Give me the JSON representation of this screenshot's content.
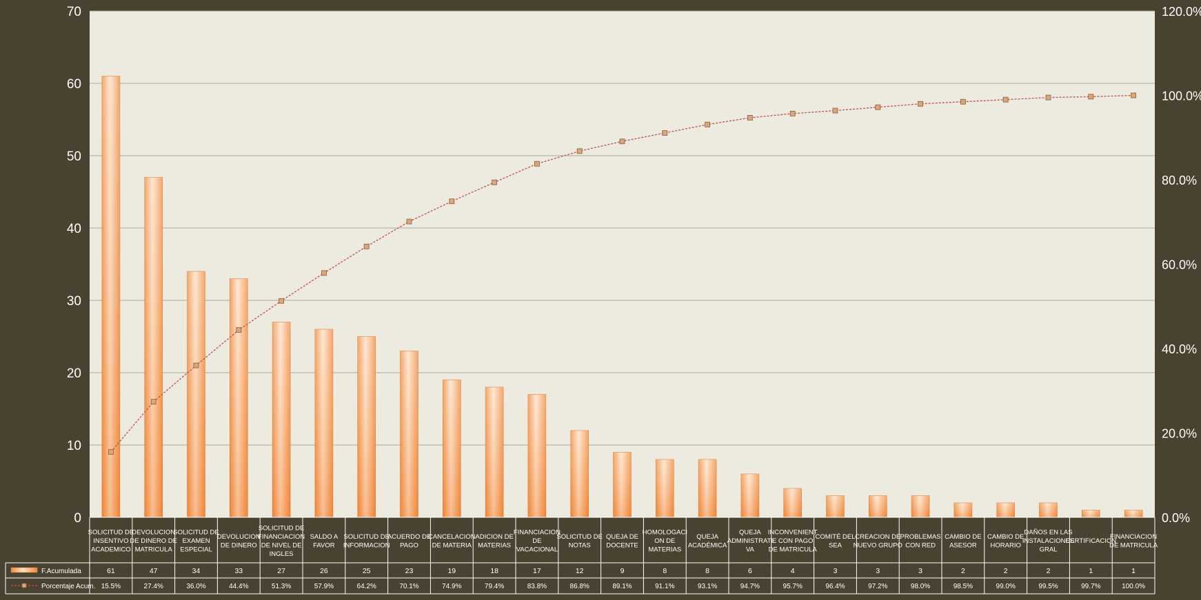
{
  "chart_data": {
    "type": "bar",
    "categories": [
      "SOLICITUD DE INSENTIVO ACADEMICO",
      "DEVOLUCION DE DINERO DE MATRICULA",
      "SOLICITUD DE EXAMEN ESPECIAL",
      "DEVOLUCION DE DINERO",
      "SOLICITUD DE FINANCIACION DE NIVEL DE INGLES",
      "SALDO A FAVOR",
      "SOLICITUD DE INFORMACION",
      "ACUERDO DE PAGO",
      "CANCELACION DE MATERIA",
      "ADICION DE MATERIAS",
      "FINANCIACION DE VACACIONAL",
      "SOLICITUD DE NOTAS",
      "QUEJA DE DOCENTE",
      "HOMOLOGACION DE MATERIAS",
      "QUEJA ACADÉMICA",
      "QUEJA ADMINISTRATIVA",
      "INCONVENIENTE CON PAGO DE MATRICULA",
      "COMITÉ DEL SEA",
      "CREACION DE NUEVO GRUPO",
      "PROBLEMAS CON RED",
      "CAMBIO DE ASESOR",
      "CAMBIO DE HORARIO",
      "DAÑOS EN LAS INSTALACIONES GRAL",
      "CERTIFICACION",
      "FINANCIACION DE MATRICULA"
    ],
    "category_lines": [
      [
        "SOLICITUD DE",
        "INSENTIVO",
        "ACADEMICO"
      ],
      [
        "DEVOLUCION",
        "DE DINERO DE",
        "MATRICULA"
      ],
      [
        "SOLICITUD DE",
        "EXAMEN",
        "ESPECIAL"
      ],
      [
        "DEVOLUCION",
        "DE DINERO"
      ],
      [
        "SOLICITUD DE",
        "FINANCIACION",
        "DE NIVEL DE",
        "INGLES"
      ],
      [
        "SALDO A",
        "FAVOR"
      ],
      [
        "SOLICITUD DE",
        "INFORMACION"
      ],
      [
        "ACUERDO DE",
        "PAGO"
      ],
      [
        "CANCELACION",
        "DE MATERIA"
      ],
      [
        "ADICION DE",
        "MATERIAS"
      ],
      [
        "FINANCIACION",
        "DE",
        "VACACIONAL"
      ],
      [
        "SOLICITUD DE",
        "NOTAS"
      ],
      [
        "QUEJA DE",
        "DOCENTE"
      ],
      [
        "HOMOLOGACI",
        "ON DE",
        "MATERIAS"
      ],
      [
        "QUEJA",
        "ACADÉMICA"
      ],
      [
        "QUEJA",
        "ADMINISTRATI",
        "VA"
      ],
      [
        "INCONVENIENT",
        "E CON PAGO",
        "DE MATRICULA"
      ],
      [
        "COMITÉ DEL",
        "SEA"
      ],
      [
        "CREACION DE",
        "NUEVO GRUPO"
      ],
      [
        "PROBLEMAS",
        "CON RED"
      ],
      [
        "CAMBIO DE",
        "ASESOR"
      ],
      [
        "CAMBIO DE",
        "HORARIO"
      ],
      [
        "DAÑOS EN LAS",
        "INSTALACIONES",
        "GRAL"
      ],
      [
        "CERTIFICACION"
      ],
      [
        "FINANCIACION",
        "DE MATRICULA"
      ]
    ],
    "series": [
      {
        "name": "F.Acumulada",
        "type": "bar",
        "axis": "left",
        "color": "#f39a4e",
        "values": [
          61,
          47,
          34,
          33,
          27,
          26,
          25,
          23,
          19,
          18,
          17,
          12,
          9,
          8,
          8,
          6,
          4,
          3,
          3,
          3,
          2,
          2,
          2,
          1,
          1
        ]
      },
      {
        "name": "Porcentaje Acum.",
        "type": "line",
        "axis": "right",
        "color": "#c0504d",
        "values": [
          15.5,
          27.4,
          36.0,
          44.4,
          51.3,
          57.9,
          64.2,
          70.1,
          74.9,
          79.4,
          83.8,
          86.8,
          89.1,
          91.1,
          93.1,
          94.7,
          95.7,
          96.4,
          97.2,
          98.0,
          98.5,
          99.0,
          99.5,
          99.7,
          100.0
        ],
        "labels": [
          "15.5%",
          "27.4%",
          "36.0%",
          "44.4%",
          "51.3%",
          "57.9%",
          "64.2%",
          "70.1%",
          "74.9%",
          "79.4%",
          "83.8%",
          "86.8%",
          "89.1%",
          "91.1%",
          "93.1%",
          "94.7%",
          "95.7%",
          "96.4%",
          "97.2%",
          "98.0%",
          "98.5%",
          "99.0%",
          "99.5%",
          "99.7%",
          "100.0%"
        ]
      }
    ],
    "y_left": {
      "min": 0,
      "max": 70,
      "ticks": [
        0,
        10,
        20,
        30,
        40,
        50,
        60,
        70
      ]
    },
    "y_right": {
      "min": 0,
      "max": 120,
      "ticks": [
        "0.0%",
        "20.0%",
        "40.0%",
        "60.0%",
        "80.0%",
        "100.0%",
        "120.0%"
      ]
    },
    "grid": true,
    "data_table": true,
    "colors": {
      "background": "#4a4230",
      "plot_background": "#edebdf",
      "gridline": "#a9a79c",
      "text": "#ffffff",
      "bar_light": "#fde2c8",
      "bar_dark": "#f08a3a",
      "line": "#c0504d",
      "marker": "#d9a77a"
    }
  }
}
